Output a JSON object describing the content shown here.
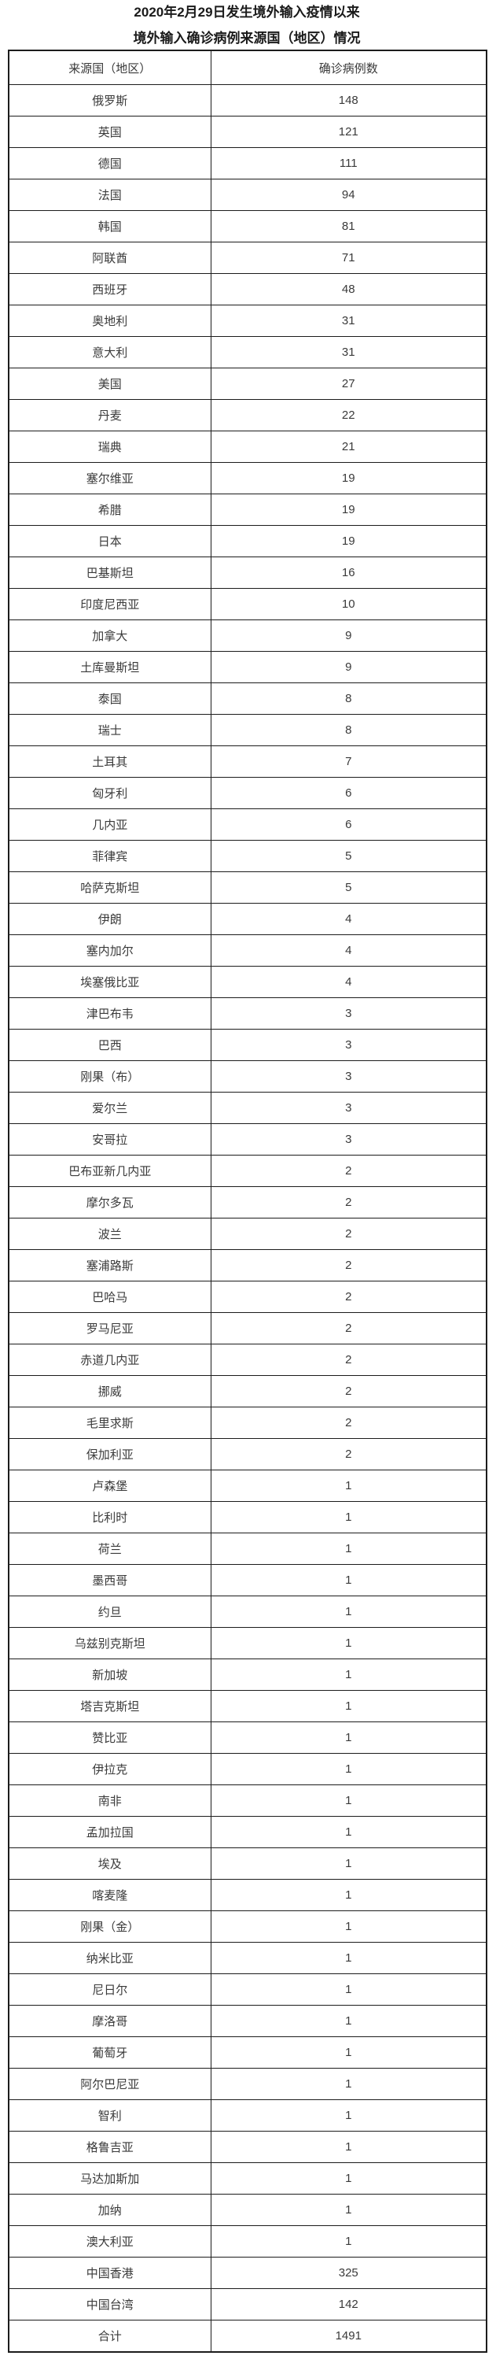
{
  "page": {
    "title_line1": "2020年2月29日发生境外输入疫情以来",
    "title_line2": "境外输入确诊病例来源国（地区）情况"
  },
  "table": {
    "columns": {
      "country": "来源国（地区）",
      "cases": "确诊病例数"
    },
    "rows": [
      {
        "country": "俄罗斯",
        "cases": 148
      },
      {
        "country": "英国",
        "cases": 121
      },
      {
        "country": "德国",
        "cases": 111
      },
      {
        "country": "法国",
        "cases": 94
      },
      {
        "country": "韩国",
        "cases": 81
      },
      {
        "country": "阿联酋",
        "cases": 71
      },
      {
        "country": "西班牙",
        "cases": 48
      },
      {
        "country": "奥地利",
        "cases": 31
      },
      {
        "country": "意大利",
        "cases": 31
      },
      {
        "country": "美国",
        "cases": 27
      },
      {
        "country": "丹麦",
        "cases": 22
      },
      {
        "country": "瑞典",
        "cases": 21
      },
      {
        "country": "塞尔维亚",
        "cases": 19
      },
      {
        "country": "希腊",
        "cases": 19
      },
      {
        "country": "日本",
        "cases": 19
      },
      {
        "country": "巴基斯坦",
        "cases": 16
      },
      {
        "country": "印度尼西亚",
        "cases": 10
      },
      {
        "country": "加拿大",
        "cases": 9
      },
      {
        "country": "土库曼斯坦",
        "cases": 9
      },
      {
        "country": "泰国",
        "cases": 8
      },
      {
        "country": "瑞士",
        "cases": 8
      },
      {
        "country": "土耳其",
        "cases": 7
      },
      {
        "country": "匈牙利",
        "cases": 6
      },
      {
        "country": "几内亚",
        "cases": 6
      },
      {
        "country": "菲律宾",
        "cases": 5
      },
      {
        "country": "哈萨克斯坦",
        "cases": 5
      },
      {
        "country": "伊朗",
        "cases": 4
      },
      {
        "country": "塞内加尔",
        "cases": 4
      },
      {
        "country": "埃塞俄比亚",
        "cases": 4
      },
      {
        "country": "津巴布韦",
        "cases": 3
      },
      {
        "country": "巴西",
        "cases": 3
      },
      {
        "country": "刚果（布）",
        "cases": 3
      },
      {
        "country": "爱尔兰",
        "cases": 3
      },
      {
        "country": "安哥拉",
        "cases": 3
      },
      {
        "country": "巴布亚新几内亚",
        "cases": 2
      },
      {
        "country": "摩尔多瓦",
        "cases": 2
      },
      {
        "country": "波兰",
        "cases": 2
      },
      {
        "country": "塞浦路斯",
        "cases": 2
      },
      {
        "country": "巴哈马",
        "cases": 2
      },
      {
        "country": "罗马尼亚",
        "cases": 2
      },
      {
        "country": "赤道几内亚",
        "cases": 2
      },
      {
        "country": "挪威",
        "cases": 2
      },
      {
        "country": "毛里求斯",
        "cases": 2
      },
      {
        "country": "保加利亚",
        "cases": 2
      },
      {
        "country": "卢森堡",
        "cases": 1
      },
      {
        "country": "比利时",
        "cases": 1
      },
      {
        "country": "荷兰",
        "cases": 1
      },
      {
        "country": "墨西哥",
        "cases": 1
      },
      {
        "country": "约旦",
        "cases": 1
      },
      {
        "country": "乌兹别克斯坦",
        "cases": 1
      },
      {
        "country": "新加坡",
        "cases": 1
      },
      {
        "country": "塔吉克斯坦",
        "cases": 1
      },
      {
        "country": "赞比亚",
        "cases": 1
      },
      {
        "country": "伊拉克",
        "cases": 1
      },
      {
        "country": "南非",
        "cases": 1
      },
      {
        "country": "孟加拉国",
        "cases": 1
      },
      {
        "country": "埃及",
        "cases": 1
      },
      {
        "country": "喀麦隆",
        "cases": 1
      },
      {
        "country": "刚果（金）",
        "cases": 1
      },
      {
        "country": "纳米比亚",
        "cases": 1
      },
      {
        "country": "尼日尔",
        "cases": 1
      },
      {
        "country": "摩洛哥",
        "cases": 1
      },
      {
        "country": "葡萄牙",
        "cases": 1
      },
      {
        "country": "阿尔巴尼亚",
        "cases": 1
      },
      {
        "country": "智利",
        "cases": 1
      },
      {
        "country": "格鲁吉亚",
        "cases": 1
      },
      {
        "country": "马达加斯加",
        "cases": 1
      },
      {
        "country": "加纳",
        "cases": 1
      },
      {
        "country": "澳大利亚",
        "cases": 1
      },
      {
        "country": "中国香港",
        "cases": 325
      },
      {
        "country": "中国台湾",
        "cases": 142
      }
    ],
    "total": {
      "label": "合计",
      "value": 1491
    }
  }
}
